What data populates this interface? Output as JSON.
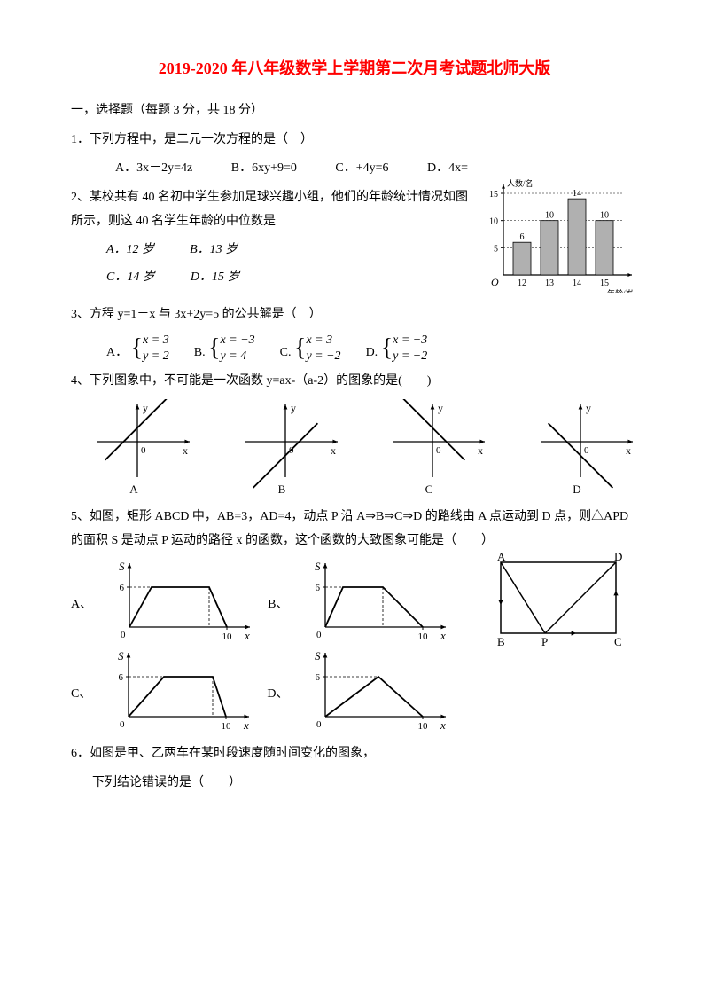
{
  "title": "2019-2020 年八年级数学上学期第二次月考试题北师大版",
  "section1": "一，选择题（每题 3 分，共 18 分）",
  "q1": {
    "text": "1．下列方程中，是二元一次方程的是（　）",
    "A": "A．3x－2y=4z",
    "B": "B．6xy+9=0",
    "C": "C．+4y=6",
    "D": "D．4x="
  },
  "q2": {
    "text": "2、某校共有 40 名初中学生参加足球兴趣小组，他们的年龄统计情况如图所示，则这 40 名学生年龄的中位数是",
    "A": "A．12 岁",
    "B": "B．13 岁",
    "C": "C．14 岁",
    "D": "D．15 岁",
    "chart": {
      "ylabel": "人数/名",
      "xlabel": "年龄/岁",
      "yticks": [
        5,
        10,
        15
      ],
      "categories": [
        "12",
        "13",
        "14",
        "15"
      ],
      "values": [
        6,
        10,
        14,
        10
      ],
      "labels": [
        "6",
        "10",
        "14",
        "10"
      ],
      "bar_color": "#b0b0b0",
      "axis_color": "#000000",
      "bg": "#ffffff"
    }
  },
  "q3": {
    "text": "3、方程 y=1－x 与 3x+2y=5 的公共解是（　）",
    "A_top": "x = 3",
    "A_bot": "y = 2",
    "B_top": "x = −3",
    "B_bot": "y = 4",
    "C_top": "x = 3",
    "C_bot": "y = −2",
    "D_top": "x = −3",
    "D_bot": "y = −2",
    "lblA": "A．",
    "lblB": "B.",
    "lblC": "C.",
    "lblD": "D."
  },
  "q4": {
    "text": "4、下列图象中，不可能是一次函数 y=ax-（a-2）的图象的是(　　)",
    "labels": {
      "A": "A",
      "B": "B",
      "C": "C",
      "D": "D"
    },
    "graphs": {
      "A": {
        "slope": 1,
        "yint": 0.6
      },
      "B": {
        "slope": 1,
        "yint": -0.6
      },
      "C": {
        "slope": -1,
        "yint": 0.6
      },
      "D": {
        "slope": -1,
        "yint": -0.6
      }
    },
    "axis": {
      "x": "x",
      "y": "y",
      "o": "0"
    }
  },
  "q5": {
    "text": "5、如图，矩形 ABCD 中，AB=3，AD=4，动点 P 沿 A⇒B⇒C⇒D 的路线由 A 点运动到 D 点，则△APD 的面积 S 是动点 P 运动的路径 x 的函数，这个函数的大致图象可能是（　　）",
    "lblA": "A、",
    "lblB": "B、",
    "lblC": "C、",
    "lblD": "D、",
    "axis": {
      "s": "S",
      "x": "x",
      "six": "6",
      "ten": "10",
      "o": "0"
    },
    "rect": {
      "A": "A",
      "B": "B",
      "C": "C",
      "D": "D",
      "P": "P"
    }
  },
  "q6": {
    "text": "6．如图是甲、乙两车在某时段速度随时间变化的图象，",
    "sub": "下列结论错误的是（　　）"
  }
}
